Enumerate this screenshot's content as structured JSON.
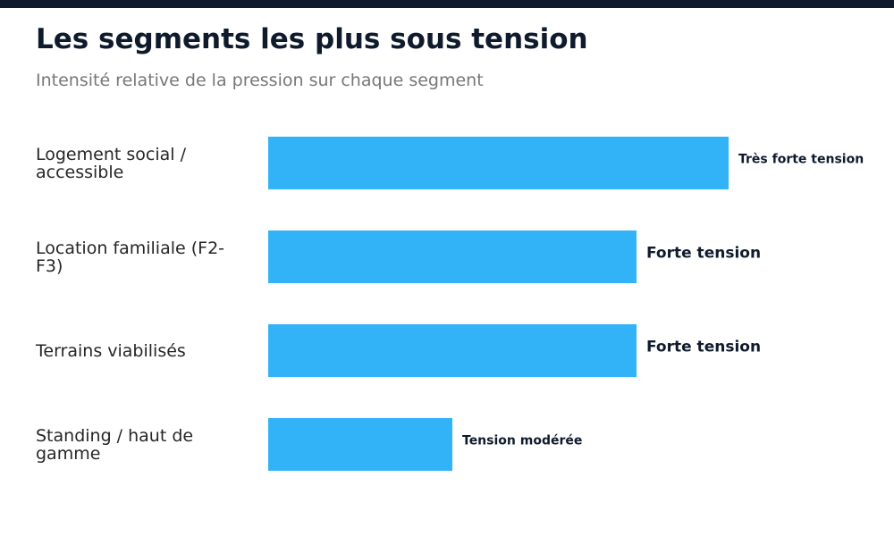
{
  "title": "Les segments les plus sous tension",
  "subtitle": "Intensité relative de la pression sur chaque segment",
  "colors": {
    "bar": "#33b3f7",
    "header_bar": "#0f1b2d",
    "title": "#0f1b2d",
    "subtitle": "#777777",
    "label": "#262626",
    "value_label": "#0f1b2d"
  },
  "chart_data": {
    "type": "bar",
    "orientation": "horizontal",
    "title": "Les segments les plus sous tension",
    "subtitle": "Intensité relative de la pression sur chaque segment",
    "categories": [
      "Logement social / accessible",
      "Location familiale (F2-F3)",
      "Terrains viabilisés",
      "Standing / haut de gamme"
    ],
    "values": [
      100,
      80,
      80,
      40
    ],
    "value_labels": [
      "Très forte tension",
      "Forte tension",
      "Forte tension",
      "Tension modérée"
    ],
    "xlim": [
      0,
      100
    ],
    "grid": false,
    "legend": "none"
  }
}
